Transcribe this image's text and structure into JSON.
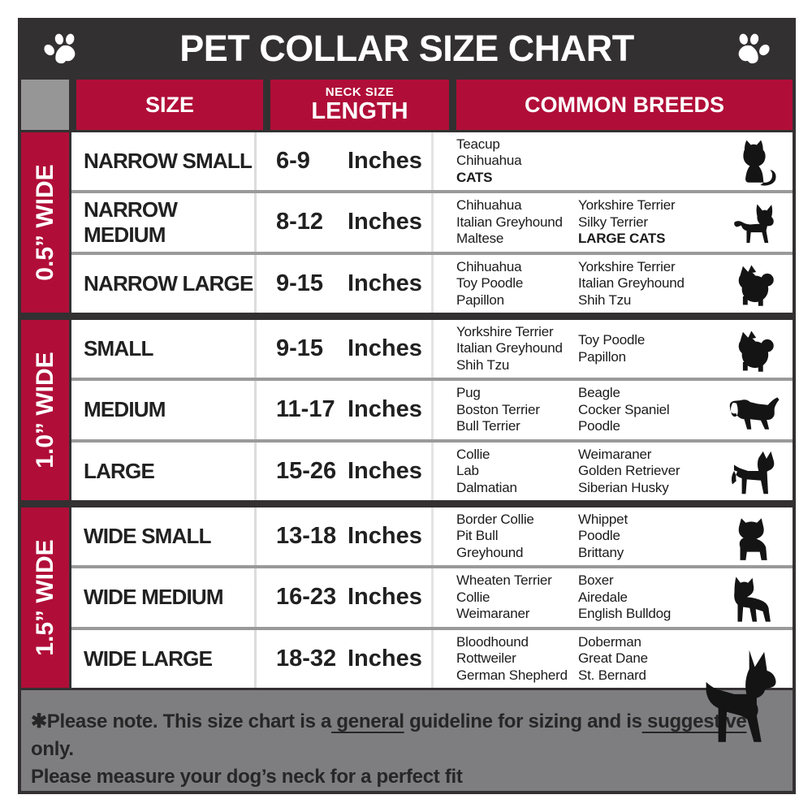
{
  "title": "PET COLLAR SIZE CHART",
  "header": {
    "size": "SIZE",
    "neck_top": "NECK SIZE",
    "neck_main": "LENGTH",
    "breeds": "COMMON BREEDS"
  },
  "groups": [
    {
      "band": "0.5” WIDE",
      "rows": [
        {
          "size": "NARROW SMALL",
          "range": "6-9",
          "unit": "Inches",
          "col1": [
            {
              "text": "Teacup"
            },
            {
              "text": "Chihuahua"
            },
            {
              "text": "CATS",
              "bold": true
            }
          ],
          "col2": [],
          "icon": "cat"
        },
        {
          "size": "NARROW MEDIUM",
          "range": "8-12",
          "unit": "Inches",
          "col1": [
            {
              "text": "Chihuahua"
            },
            {
              "text": "Italian Greyhound"
            },
            {
              "text": "Maltese"
            }
          ],
          "col2": [
            {
              "text": "Yorkshire Terrier"
            },
            {
              "text": "Silky Terrier"
            },
            {
              "text": "LARGE CATS",
              "bold": true
            }
          ],
          "icon": "chihuahua"
        },
        {
          "size": "NARROW LARGE",
          "range": "9-15",
          "unit": "Inches",
          "col1": [
            {
              "text": "Chihuahua"
            },
            {
              "text": "Toy Poodle"
            },
            {
              "text": "Papillon"
            }
          ],
          "col2": [
            {
              "text": "Yorkshire Terrier"
            },
            {
              "text": "Italian Greyhound"
            },
            {
              "text": "Shih Tzu"
            }
          ],
          "icon": "pomeranian"
        }
      ]
    },
    {
      "band": "1.0” WIDE",
      "rows": [
        {
          "size": "SMALL",
          "range": "9-15",
          "unit": "Inches",
          "col1": [
            {
              "text": "Yorkshire Terrier"
            },
            {
              "text": "Italian Greyhound"
            },
            {
              "text": "Shih Tzu"
            }
          ],
          "col2": [
            {
              "text": "Toy Poodle"
            },
            {
              "text": "Papillon"
            }
          ],
          "icon": "pomeranian"
        },
        {
          "size": "MEDIUM",
          "range": "11-17",
          "unit": "Inches",
          "col1": [
            {
              "text": "Pug"
            },
            {
              "text": "Boston Terrier"
            },
            {
              "text": "Bull Terrier"
            }
          ],
          "col2": [
            {
              "text": "Beagle"
            },
            {
              "text": "Cocker Spaniel"
            },
            {
              "text": "Poodle"
            }
          ],
          "icon": "beagle"
        },
        {
          "size": "LARGE",
          "range": "15-26",
          "unit": "Inches",
          "col1": [
            {
              "text": "Collie"
            },
            {
              "text": "Lab"
            },
            {
              "text": "Dalmatian"
            }
          ],
          "col2": [
            {
              "text": "Weimaraner"
            },
            {
              "text": "Golden Retriever"
            },
            {
              "text": "Siberian Husky"
            }
          ],
          "icon": "shepherd"
        }
      ]
    },
    {
      "band": "1.5” WIDE",
      "rows": [
        {
          "size": "WIDE SMALL",
          "range": "13-18",
          "unit": "Inches",
          "col1": [
            {
              "text": "Border Collie"
            },
            {
              "text": "Pit Bull"
            },
            {
              "text": "Greyhound"
            }
          ],
          "col2": [
            {
              "text": "Whippet"
            },
            {
              "text": "Poodle"
            },
            {
              "text": "Brittany"
            }
          ],
          "icon": "bulldog"
        },
        {
          "size": "WIDE MEDIUM",
          "range": "16-23",
          "unit": "Inches",
          "col1": [
            {
              "text": "Wheaten Terrier"
            },
            {
              "text": "Collie"
            },
            {
              "text": "Weimaraner"
            }
          ],
          "col2": [
            {
              "text": "Boxer"
            },
            {
              "text": "Airedale"
            },
            {
              "text": "English Bulldog"
            }
          ],
          "icon": "pitbull"
        },
        {
          "size": "WIDE LARGE",
          "range": "18-32",
          "unit": "Inches",
          "col1": [
            {
              "text": "Bloodhound"
            },
            {
              "text": "Rottweiler"
            },
            {
              "text": "German Shepherd"
            }
          ],
          "col2": [
            {
              "text": "Doberman"
            },
            {
              "text": "Great Dane"
            },
            {
              "text": "St. Bernard"
            }
          ],
          "icon": ""
        }
      ]
    }
  ],
  "footer": {
    "line1": [
      {
        "text": "✱Please note. This size chart is a"
      },
      {
        "text": " general",
        "underline": true
      },
      {
        "text": " guideline for sizing and is"
      },
      {
        "text": " suggestive",
        "underline": true
      },
      {
        "text": " only."
      }
    ],
    "line2": "Please measure your dog’s neck for a perfect fit"
  },
  "colors": {
    "red": "#b00e38",
    "dark": "#333032",
    "gray_cell": "#969696",
    "footer_bg": "#7e7e81",
    "row_bg": "#ffffff"
  }
}
